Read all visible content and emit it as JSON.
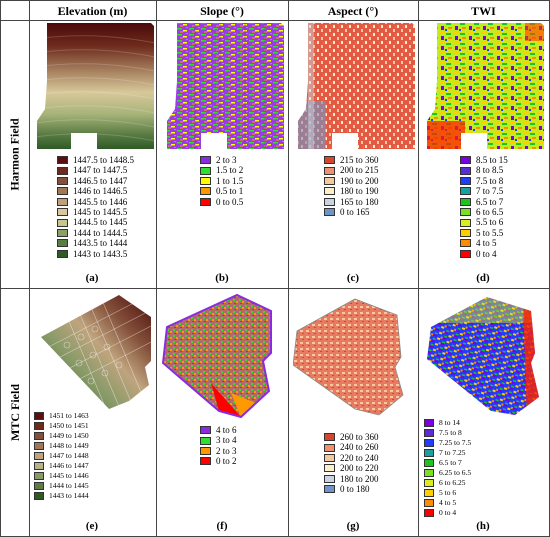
{
  "columns": [
    "Elevation (m)",
    "Slope (°)",
    "Aspect (°)",
    "TWI"
  ],
  "rows": [
    "Harmon Field",
    "MTC Field"
  ],
  "panels": {
    "a": {
      "label": "(a)",
      "legend": [
        {
          "text": "1447.5 to 1448.5",
          "color": "#5a1010"
        },
        {
          "text": "1447 to 1447.5",
          "color": "#6e2a1c"
        },
        {
          "text": "1446.5 to 1447",
          "color": "#84503a"
        },
        {
          "text": "1446 to 1446.5",
          "color": "#a07858"
        },
        {
          "text": "1445.5 to 1446",
          "color": "#bfa07a"
        },
        {
          "text": "1445 to 1445.5",
          "color": "#d8c89a"
        },
        {
          "text": "1444.5 to 1445",
          "color": "#c4c88e"
        },
        {
          "text": "1444 to 1444.5",
          "color": "#8aa266"
        },
        {
          "text": "1443.5 to 1444",
          "color": "#5b7d44"
        },
        {
          "text": "1443 to 1443.5",
          "color": "#2e5a26"
        }
      ]
    },
    "b": {
      "label": "(b)",
      "legend": [
        {
          "text": "2 to 3",
          "color": "#8a2be2"
        },
        {
          "text": "1.5 to 2",
          "color": "#2ee02e"
        },
        {
          "text": "1 to 1.5",
          "color": "#ffff00"
        },
        {
          "text": "0.5 to 1",
          "color": "#ff9900"
        },
        {
          "text": "0 to 0.5",
          "color": "#ff0000"
        }
      ]
    },
    "c": {
      "label": "(c)",
      "legend": [
        {
          "text": "215 to 360",
          "color": "#d9442f"
        },
        {
          "text": "200 to 215",
          "color": "#f09070"
        },
        {
          "text": "190 to 200",
          "color": "#f6c8a0"
        },
        {
          "text": "180 to 190",
          "color": "#fbf0c8"
        },
        {
          "text": "165 to 180",
          "color": "#c8d4e0"
        },
        {
          "text": "0 to 165",
          "color": "#6f94c8"
        }
      ]
    },
    "d": {
      "label": "(d)",
      "legend": [
        {
          "text": "8.5 to 15",
          "color": "#7a00e0"
        },
        {
          "text": "8 to 8.5",
          "color": "#5b2bd8"
        },
        {
          "text": "7.5 to 8",
          "color": "#1f3cff"
        },
        {
          "text": "7 to 7.5",
          "color": "#1aa0a0"
        },
        {
          "text": "6.5 to 7",
          "color": "#1ec41e"
        },
        {
          "text": "6 to 6.5",
          "color": "#7ae020"
        },
        {
          "text": "5.5 to 6",
          "color": "#d8ee20"
        },
        {
          "text": "5 to 5.5",
          "color": "#ffd000"
        },
        {
          "text": "4 to 5",
          "color": "#ff8c00"
        },
        {
          "text": "0 to 4",
          "color": "#ff0000"
        }
      ]
    },
    "e": {
      "label": "(e)",
      "legend": [
        {
          "text": "1451 to 1463",
          "color": "#5a1010"
        },
        {
          "text": "1450 to 1451",
          "color": "#6e2a1c"
        },
        {
          "text": "1449 to 1450",
          "color": "#84503a"
        },
        {
          "text": "1448 to 1449",
          "color": "#a07858"
        },
        {
          "text": "1447 to 1448",
          "color": "#c0a47e"
        },
        {
          "text": "1446 to 1447",
          "color": "#b4b486"
        },
        {
          "text": "1445 to 1446",
          "color": "#889a68"
        },
        {
          "text": "1444 to 1445",
          "color": "#5e7c48"
        },
        {
          "text": "1443 to 1444",
          "color": "#2e5a26"
        }
      ]
    },
    "f": {
      "label": "(f)",
      "legend": [
        {
          "text": "4 to 6",
          "color": "#8a2be2"
        },
        {
          "text": "3 to 4",
          "color": "#2ee02e"
        },
        {
          "text": "2 to 3",
          "color": "#ff9900"
        },
        {
          "text": "0 to 2",
          "color": "#ff0000"
        }
      ]
    },
    "g": {
      "label": "(g)",
      "legend": [
        {
          "text": "260 to 360",
          "color": "#d9442f"
        },
        {
          "text": "240 to 260",
          "color": "#f09070"
        },
        {
          "text": "220 to 240",
          "color": "#f6c8a0"
        },
        {
          "text": "200 to 220",
          "color": "#fbf0c8"
        },
        {
          "text": "180 to 200",
          "color": "#c8d4e0"
        },
        {
          "text": "0 to 180",
          "color": "#6f94c8"
        }
      ]
    },
    "h": {
      "label": "(h)",
      "legend": [
        {
          "text": "8 to 14",
          "color": "#7a00e0"
        },
        {
          "text": "7.5 to 8",
          "color": "#5b2bd8"
        },
        {
          "text": "7.25 to 7.5",
          "color": "#1f3cff"
        },
        {
          "text": "7 to 7.25",
          "color": "#1aa0a0"
        },
        {
          "text": "6.5 to 7",
          "color": "#1ec41e"
        },
        {
          "text": "6.25 to 6.5",
          "color": "#7ae020"
        },
        {
          "text": "6 to 6.25",
          "color": "#d8ee20"
        },
        {
          "text": "5 to 6",
          "color": "#ffd000"
        },
        {
          "text": "4 to 5",
          "color": "#ff8c00"
        },
        {
          "text": "0 to 4",
          "color": "#ff0000"
        }
      ]
    }
  }
}
